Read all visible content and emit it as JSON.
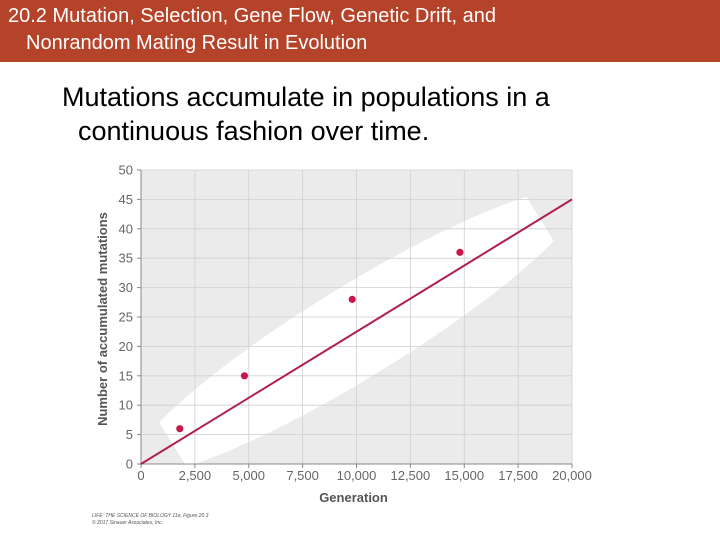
{
  "header": {
    "title_line1": "20.2 Mutation, Selection, Gene Flow, Genetic Drift, and",
    "title_line2": "Nonrandom Mating Result in Evolution",
    "background_color": "#b5432a"
  },
  "content": {
    "bullet_line1": "Mutations accumulate in populations in a",
    "bullet_line2": "continuous fashion over time."
  },
  "credit": {
    "line1": "LIFE: THE SCIENCE OF BIOLOGY 11e, Figure 20.3",
    "line2": "© 2017 Sinauer Associates, Inc."
  },
  "chart_data": {
    "type": "scatter",
    "xlabel": "Generation",
    "ylabel": "Number of accumulated mutations",
    "xlim": [
      0,
      20000
    ],
    "ylim": [
      0,
      50
    ],
    "x_ticks": [
      "0",
      "2,500",
      "5,000",
      "7,500",
      "10,000",
      "12,500",
      "15,000",
      "17,500",
      "20,000"
    ],
    "y_ticks": [
      "0",
      "5",
      "10",
      "15",
      "20",
      "25",
      "30",
      "35",
      "40",
      "45",
      "50"
    ],
    "grid": true,
    "points": [
      {
        "x": 1800,
        "y": 6
      },
      {
        "x": 4800,
        "y": 15
      },
      {
        "x": 9800,
        "y": 28
      },
      {
        "x": 14800,
        "y": 36
      }
    ],
    "fit_line": {
      "x": [
        0,
        20000
      ],
      "y": [
        0,
        45
      ]
    },
    "colors": {
      "points": "#c8174a",
      "line": "#b0204a",
      "band": "#ffffff",
      "plot_bg": "#ebebeb"
    }
  }
}
